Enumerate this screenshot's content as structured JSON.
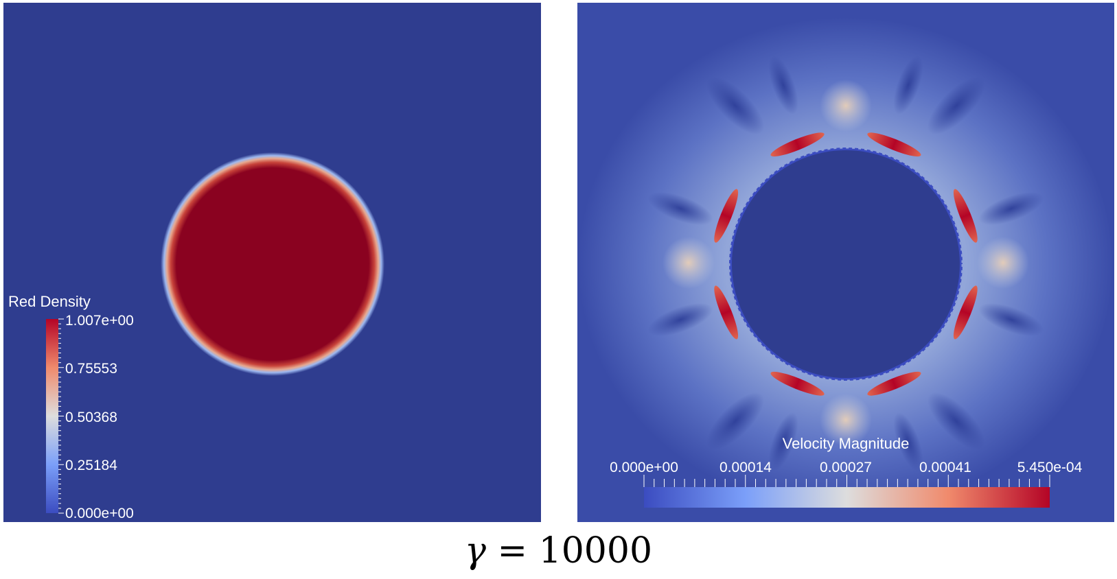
{
  "panels": {
    "left": {
      "field": "Red Density",
      "colorbar": {
        "title": "Red Density",
        "ticks": [
          "1.007e+00",
          "0.75553",
          "0.50368",
          "0.25184",
          "0.000e+00"
        ]
      }
    },
    "right": {
      "field": "Velocity Magnitude",
      "colorbar": {
        "title": "Velocity Magnitude",
        "ticks": [
          "0.000e+00",
          "0.00014",
          "0.00027",
          "0.00041",
          "5.450e-04"
        ]
      }
    }
  },
  "caption": {
    "symbol": "γ",
    "equals": " = ",
    "value": "10000"
  },
  "colors": {
    "background_blue": "#2F3D8F",
    "drop_red": "#8A0220",
    "colormap": [
      "#3B4CC0",
      "#6A8BEF",
      "#B3CDFB",
      "#DDDDDD",
      "#F4B597",
      "#E0654F",
      "#B40426"
    ]
  }
}
